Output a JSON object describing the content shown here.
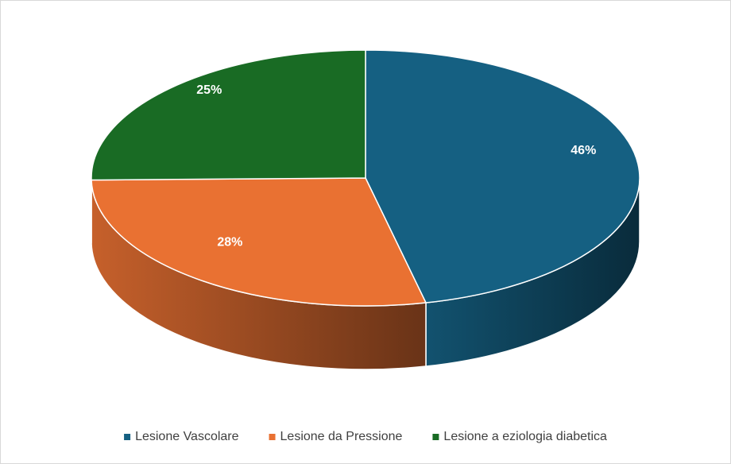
{
  "chart_data": {
    "type": "pie3d",
    "categories": [
      "Lesione Vascolare",
      "Lesione da Pressione",
      "Lesione a eziologia diabetica"
    ],
    "values": [
      46,
      28,
      25
    ],
    "value_labels": [
      "46%",
      "28%",
      "25%"
    ],
    "colors": [
      "#156082",
      "#e97132",
      "#196b24"
    ],
    "legend": "bottom"
  }
}
